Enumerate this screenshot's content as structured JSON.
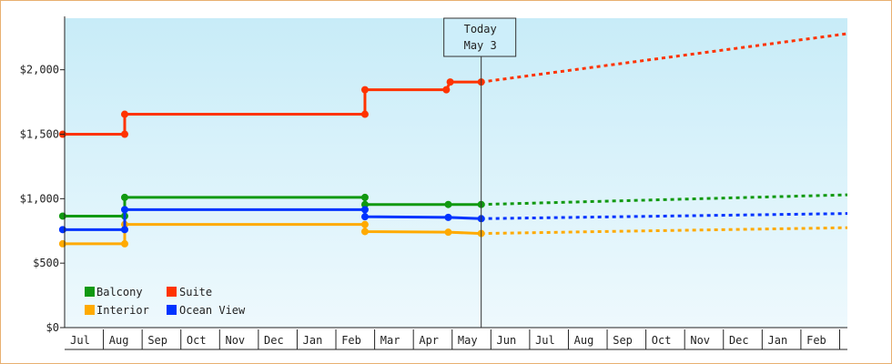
{
  "chart_data": {
    "type": "line",
    "title": "",
    "xlabel": "",
    "ylabel": "",
    "ylim": [
      0,
      2400
    ],
    "y_ticks": [
      {
        "value": 0,
        "label": "$0"
      },
      {
        "value": 500,
        "label": "$500"
      },
      {
        "value": 1000,
        "label": "$1,000"
      },
      {
        "value": 1500,
        "label": "$1,500"
      },
      {
        "value": 2000,
        "label": "$2,000"
      }
    ],
    "x_range": [
      0,
      20.2
    ],
    "x_ticks": [
      {
        "value": 0.4,
        "label": "Jul"
      },
      {
        "value": 1.4,
        "label": "Aug"
      },
      {
        "value": 2.4,
        "label": "Sep"
      },
      {
        "value": 3.4,
        "label": "Oct"
      },
      {
        "value": 4.4,
        "label": "Nov"
      },
      {
        "value": 5.4,
        "label": "Dec"
      },
      {
        "value": 6.4,
        "label": "Jan"
      },
      {
        "value": 7.4,
        "label": "Feb"
      },
      {
        "value": 8.4,
        "label": "Mar"
      },
      {
        "value": 9.4,
        "label": "Apr"
      },
      {
        "value": 10.4,
        "label": "May"
      },
      {
        "value": 11.4,
        "label": "Jun"
      },
      {
        "value": 12.4,
        "label": "Jul"
      },
      {
        "value": 13.4,
        "label": "Aug"
      },
      {
        "value": 14.4,
        "label": "Sep"
      },
      {
        "value": 15.4,
        "label": "Oct"
      },
      {
        "value": 16.4,
        "label": "Nov"
      },
      {
        "value": 17.4,
        "label": "Dec"
      },
      {
        "value": 18.4,
        "label": "Jan"
      },
      {
        "value": 19.4,
        "label": "Feb"
      }
    ],
    "today": {
      "x": 10.75,
      "label1": "Today",
      "label2": "May 3"
    },
    "legend_placement": "bottom-left",
    "series": [
      {
        "name": "Balcony",
        "color": "#119911",
        "points": [
          [
            -0.05,
            865
          ],
          [
            1.55,
            865
          ],
          [
            1.55,
            1010
          ],
          [
            7.75,
            1010
          ],
          [
            7.75,
            955
          ],
          [
            9.9,
            955
          ],
          [
            10.75,
            955
          ]
        ],
        "forecast": [
          [
            10.75,
            955
          ],
          [
            20.2,
            1030
          ]
        ]
      },
      {
        "name": "Suite",
        "color": "#ff3300",
        "points": [
          [
            -0.05,
            1500
          ],
          [
            1.55,
            1500
          ],
          [
            1.55,
            1655
          ],
          [
            7.75,
            1655
          ],
          [
            7.75,
            1845
          ],
          [
            9.85,
            1845
          ],
          [
            9.95,
            1905
          ],
          [
            10.75,
            1905
          ]
        ],
        "forecast": [
          [
            10.75,
            1905
          ],
          [
            20.2,
            2280
          ]
        ]
      },
      {
        "name": "Interior",
        "color": "#ffaa00",
        "points": [
          [
            -0.05,
            650
          ],
          [
            1.55,
            650
          ],
          [
            1.55,
            800
          ],
          [
            7.75,
            800
          ],
          [
            7.75,
            745
          ],
          [
            9.9,
            740
          ],
          [
            10.75,
            730
          ]
        ],
        "forecast": [
          [
            10.75,
            730
          ],
          [
            20.2,
            775
          ]
        ]
      },
      {
        "name": "Ocean View",
        "color": "#0033ff",
        "points": [
          [
            -0.05,
            760
          ],
          [
            1.55,
            760
          ],
          [
            1.55,
            915
          ],
          [
            7.75,
            915
          ],
          [
            7.75,
            860
          ],
          [
            9.9,
            855
          ],
          [
            10.75,
            845
          ]
        ],
        "forecast": [
          [
            10.75,
            845
          ],
          [
            20.2,
            885
          ]
        ]
      }
    ],
    "markers": {
      "Balcony": [
        [
          -0.05,
          865
        ],
        [
          1.55,
          865
        ],
        [
          1.55,
          1010
        ],
        [
          7.75,
          1010
        ],
        [
          7.75,
          955
        ],
        [
          9.9,
          955
        ],
        [
          10.75,
          955
        ]
      ],
      "Suite": [
        [
          -0.05,
          1500
        ],
        [
          1.55,
          1500
        ],
        [
          1.55,
          1655
        ],
        [
          7.75,
          1655
        ],
        [
          7.75,
          1845
        ],
        [
          9.85,
          1845
        ],
        [
          9.95,
          1905
        ],
        [
          10.75,
          1905
        ]
      ],
      "Interior": [
        [
          -0.05,
          650
        ],
        [
          1.55,
          650
        ],
        [
          1.55,
          800
        ],
        [
          7.75,
          800
        ],
        [
          7.75,
          745
        ],
        [
          9.9,
          740
        ],
        [
          10.75,
          730
        ]
      ],
      "Ocean View": [
        [
          -0.05,
          760
        ],
        [
          1.55,
          760
        ],
        [
          1.55,
          915
        ],
        [
          7.75,
          915
        ],
        [
          7.75,
          860
        ],
        [
          9.9,
          855
        ],
        [
          10.75,
          845
        ]
      ]
    },
    "background_gradient": [
      "#c8ecf8",
      "#eef9fd"
    ]
  }
}
